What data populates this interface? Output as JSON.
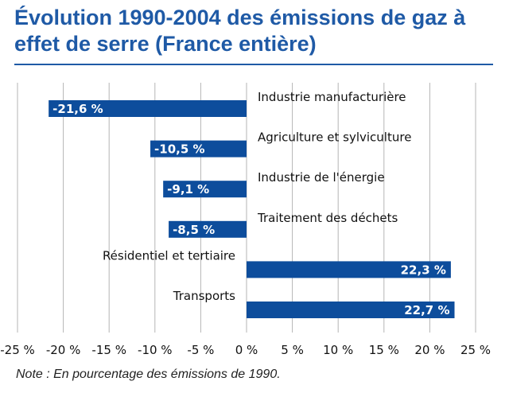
{
  "title": "Évolution 1990-2004 des émissions de gaz à effet de serre (France entière)",
  "note": "Note : En pourcentage des émissions de 1990.",
  "colors": {
    "bar": "#0d4d9c",
    "title": "#1f5aa6",
    "grid": "#b5b5b5"
  },
  "chart_data": {
    "type": "bar",
    "orientation": "horizontal",
    "categories": [
      "Industrie manufacturière",
      "Agriculture et sylviculture",
      "Industrie de l'énergie",
      "Traitement des déchets",
      "Résidentiel et tertiaire",
      "Transports"
    ],
    "values": [
      -21.6,
      -10.5,
      -9.1,
      -8.5,
      22.3,
      22.7
    ],
    "value_labels": [
      "-21,6 %",
      "-10,5 %",
      "-9,1 %",
      "-8,5 %",
      "22,3 %",
      "22,7 %"
    ],
    "xlim": [
      -25,
      25
    ],
    "xticks": [
      -25,
      -20,
      -15,
      -10,
      -5,
      0,
      5,
      10,
      15,
      20,
      25
    ],
    "xtick_labels": [
      "-25 %",
      "-20 %",
      "-15 %",
      "-10 %",
      "-5 %",
      "0 %",
      "5 %",
      "10 %",
      "15 %",
      "20 %",
      "25 %"
    ],
    "grid": true,
    "legend": "none"
  }
}
